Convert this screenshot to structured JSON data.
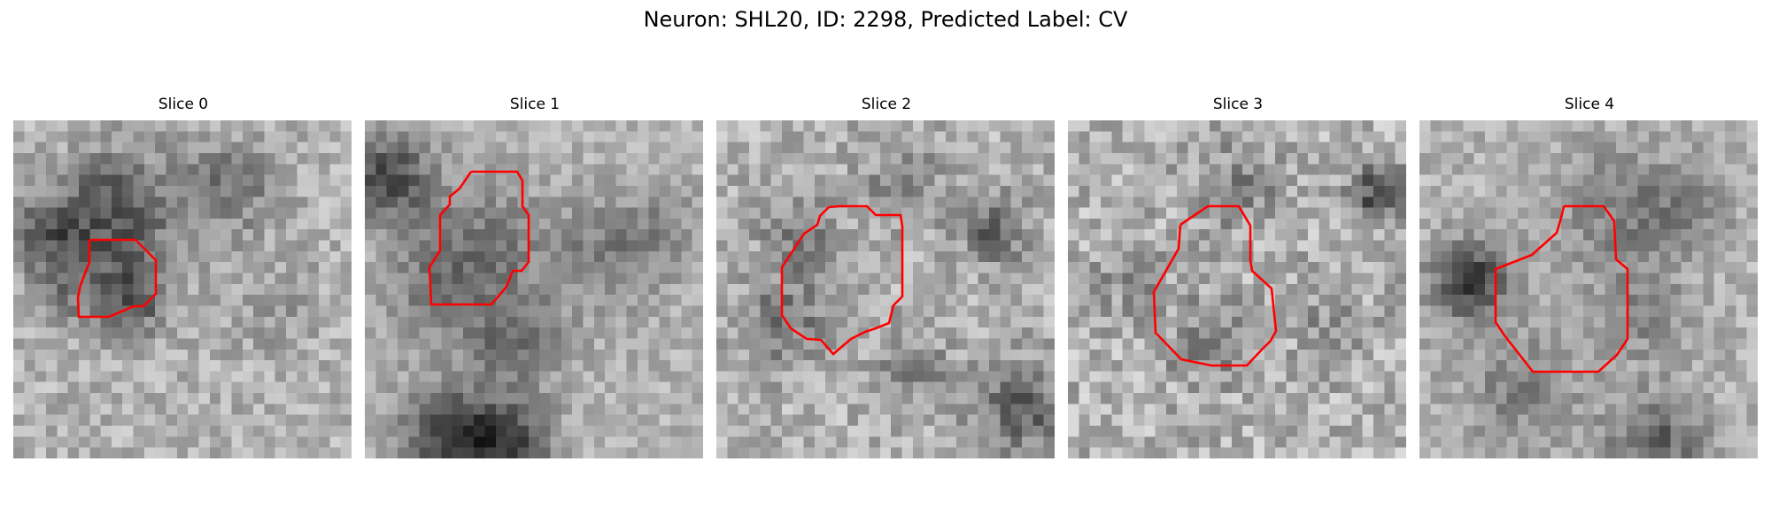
{
  "figure": {
    "title": "Neuron: SHL20, ID: 2298, Predicted Label: CV"
  },
  "colors": {
    "contour": "#ff0000",
    "colormap": "gray"
  },
  "panels": [
    {
      "title": "Slice 0"
    },
    {
      "title": "Slice 1"
    },
    {
      "title": "Slice 2"
    },
    {
      "title": "Slice 3"
    },
    {
      "title": "Slice 4"
    }
  ]
}
